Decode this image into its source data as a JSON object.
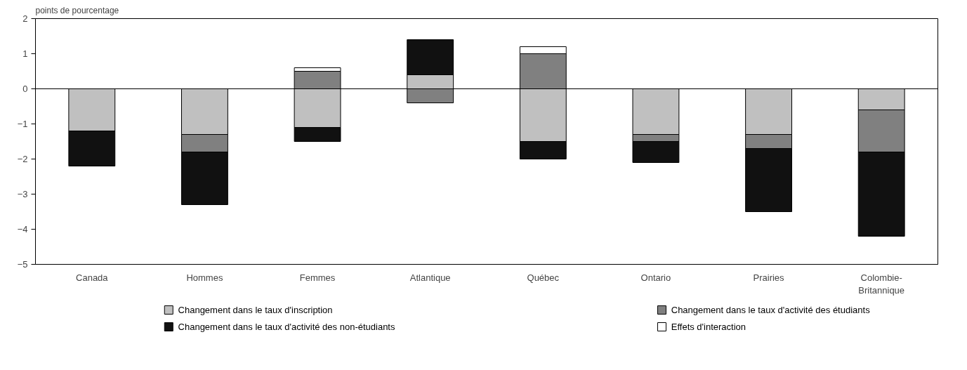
{
  "chart_data": {
    "type": "bar",
    "stacked": true,
    "ylabel": "points de pourcentage",
    "categories": [
      "Canada",
      "Hommes",
      "Femmes",
      "Atlantique",
      "Québec",
      "Ontario",
      "Prairies",
      "Colombie-Britannique"
    ],
    "series": [
      {
        "name": "Changement dans le taux d'inscription",
        "color": "#c0c0c0",
        "values": [
          -1.2,
          -1.3,
          -1.1,
          0.4,
          -1.5,
          -1.3,
          -1.3,
          -0.6
        ]
      },
      {
        "name": "Changement dans le taux d'activité des étudiants",
        "color": "#808080",
        "values": [
          null,
          -0.5,
          0.5,
          -0.4,
          1.0,
          -0.2,
          -0.4,
          -1.2
        ]
      },
      {
        "name": "Changement dans le taux d'activité des non-étudiants",
        "color": "#111111",
        "values": [
          -1.0,
          -1.5,
          -0.4,
          1.0,
          -0.5,
          -0.6,
          -1.8,
          -2.4
        ]
      },
      {
        "name": "Effets d'interaction",
        "color": "#ffffff",
        "values": [
          null,
          null,
          0.1,
          null,
          0.2,
          null,
          null,
          null
        ]
      }
    ],
    "ylim": [
      -5,
      2
    ],
    "yticks": [
      -5,
      -4,
      -3,
      -2,
      -1,
      0,
      1,
      2
    ],
    "grid": false,
    "ref_lines": [
      {
        "axis": "y",
        "value": 0,
        "color": "#000000"
      }
    ],
    "legend": "bottom"
  }
}
